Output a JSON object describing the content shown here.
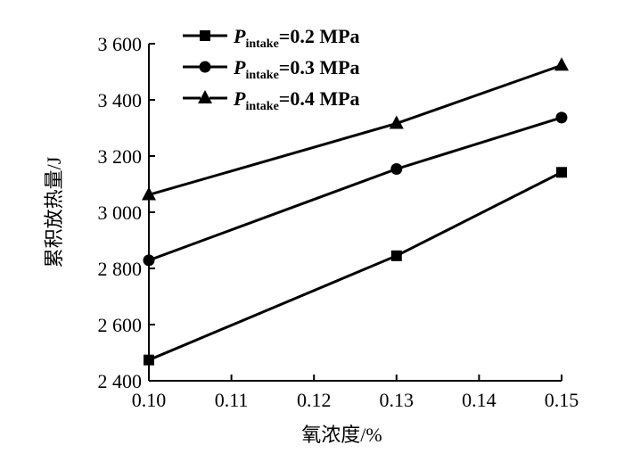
{
  "chart_data": {
    "type": "line",
    "title": "",
    "xlabel": "氧浓度/%",
    "ylabel": "累积放热量/J",
    "x": [
      0.1,
      0.13,
      0.15
    ],
    "xlim": [
      0.1,
      0.15
    ],
    "ylim": [
      2400,
      3600
    ],
    "xticks": [
      "0.10",
      "0.11",
      "0.12",
      "0.13",
      "0.14",
      "0.15"
    ],
    "xtick_values": [
      0.1,
      0.11,
      0.12,
      0.13,
      0.14,
      0.15
    ],
    "yticks": [
      "2 400",
      "2 600",
      "2 800",
      "3 000",
      "3 200",
      "3 400",
      "3 600"
    ],
    "ytick_values": [
      2400,
      2600,
      2800,
      3000,
      3200,
      3400,
      3600
    ],
    "grid": false,
    "legend_position": "top-left",
    "series": [
      {
        "name": "P_intake=0.2 MPa",
        "legend_p": "P",
        "legend_sub": "intake",
        "legend_rest": "=0.2 MPa",
        "marker": "square",
        "values": [
          2474,
          2845,
          3142
        ]
      },
      {
        "name": "P_intake=0.3 MPa",
        "legend_p": "P",
        "legend_sub": "intake",
        "legend_rest": "=0.3 MPa",
        "marker": "circle",
        "values": [
          2829,
          3154,
          3337
        ]
      },
      {
        "name": "P_intake=0.4 MPa",
        "legend_p": "P",
        "legend_sub": "intake",
        "legend_rest": "=0.4 MPa",
        "marker": "triangle",
        "values": [
          3062,
          3316,
          3523
        ]
      }
    ]
  }
}
